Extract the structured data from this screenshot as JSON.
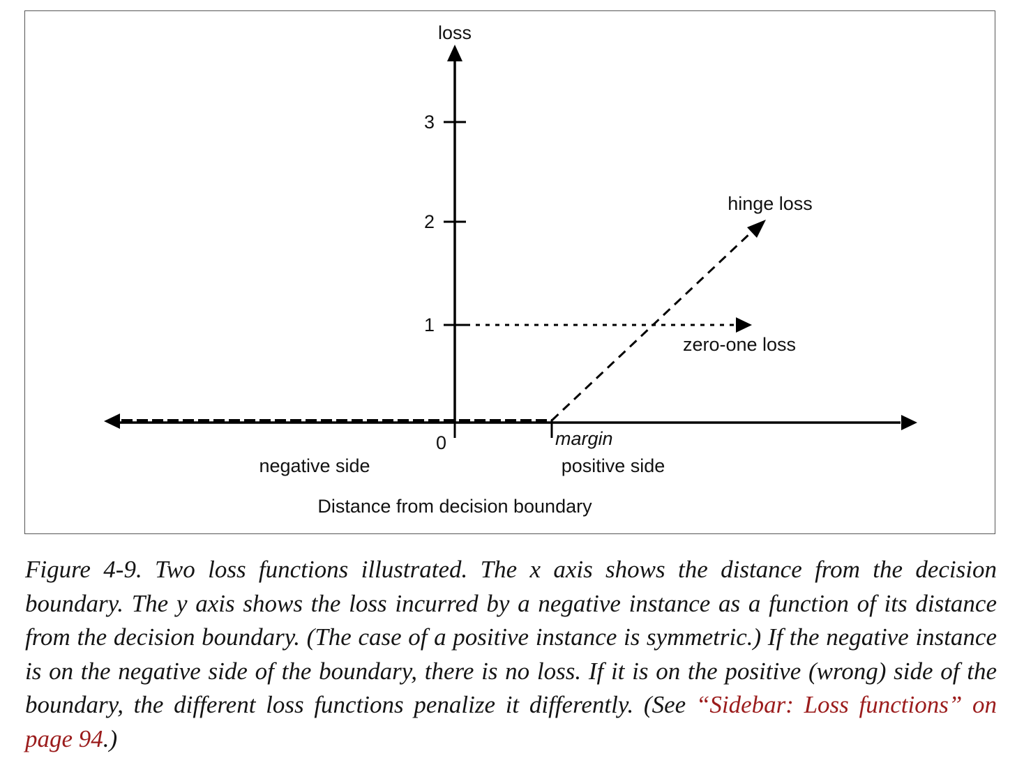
{
  "figure": {
    "y_axis_label": "loss",
    "y_ticks": [
      "3",
      "2",
      "1"
    ],
    "origin_label": "0",
    "margin_label": "margin",
    "negative_side_label": "negative side",
    "positive_side_label": "positive side",
    "x_axis_label": "Distance from decision boundary",
    "hinge_loss_label": "hinge loss",
    "zero_one_loss_label": "zero-one loss"
  },
  "caption": {
    "prefix": "Figure 4-9. Two loss functions illustrated. The x axis shows the distance from the decision boundary. The y axis shows the loss incurred by a negative instance as a function of its distance from the decision boundary. (The case of a positive instance is symmetric.) If the negative instance is on the negative side of the boundary, there is no loss. If it is on the positive (wrong) side of the boundary, the different loss functions penalize it differently. (See ",
    "link_text": "“Sidebar: Loss functions” on page 94",
    "suffix": ".)"
  },
  "colors": {
    "link": "#9b1c1c",
    "line": "#000000"
  }
}
